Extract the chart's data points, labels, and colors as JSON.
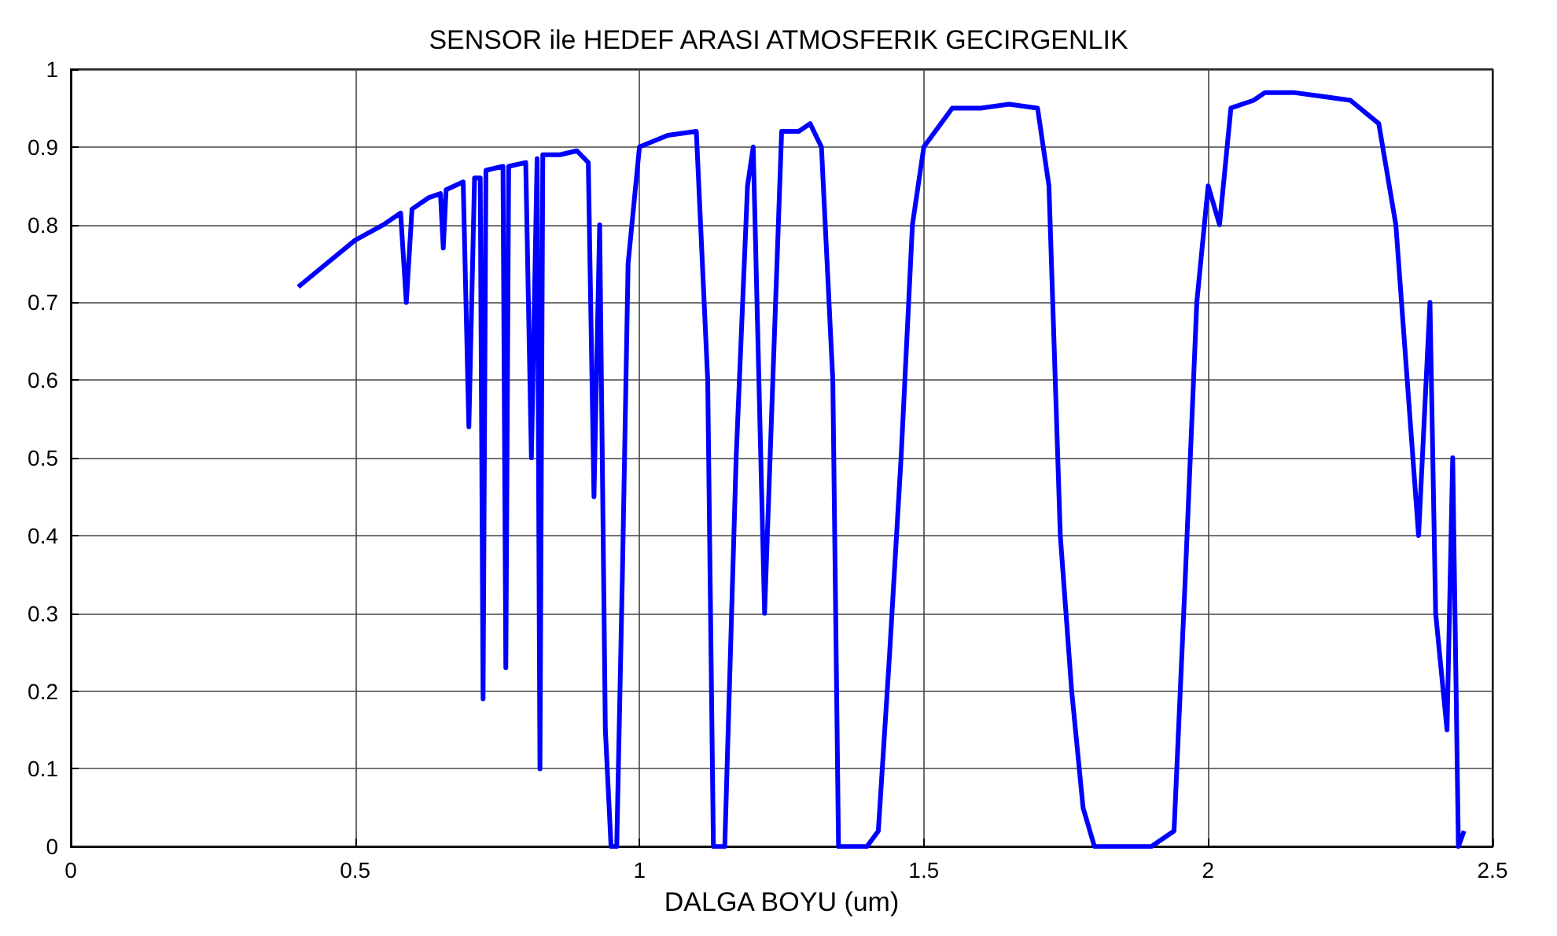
{
  "chart_data": {
    "type": "line",
    "title": "SENSOR ile HEDEF ARASI ATMOSFERIK GECIRGENLIK",
    "xlabel": "DALGA BOYU (um)",
    "color": "#0000ff",
    "grid": true,
    "marker": "none",
    "line_style": "solid",
    "xlim": [
      0,
      2.5
    ],
    "xticks": [
      0,
      0.5,
      1,
      1.5,
      2,
      2.5
    ],
    "ylim": [
      0,
      1
    ],
    "yticks": [
      0,
      0.1,
      0.2,
      0.3,
      0.4,
      0.5,
      0.6,
      0.7,
      0.8,
      0.9,
      1
    ],
    "x": [
      0.4,
      0.45,
      0.5,
      0.55,
      0.58,
      0.59,
      0.6,
      0.63,
      0.65,
      0.655,
      0.66,
      0.69,
      0.7,
      0.71,
      0.72,
      0.725,
      0.73,
      0.76,
      0.765,
      0.77,
      0.8,
      0.81,
      0.82,
      0.825,
      0.83,
      0.86,
      0.89,
      0.91,
      0.92,
      0.93,
      0.94,
      0.95,
      0.96,
      0.97,
      0.98,
      1.0,
      1.05,
      1.1,
      1.12,
      1.13,
      1.15,
      1.17,
      1.19,
      1.2,
      1.22,
      1.25,
      1.28,
      1.3,
      1.32,
      1.34,
      1.35,
      1.37,
      1.4,
      1.42,
      1.44,
      1.46,
      1.48,
      1.5,
      1.53,
      1.55,
      1.6,
      1.65,
      1.7,
      1.72,
      1.74,
      1.76,
      1.78,
      1.8,
      1.85,
      1.9,
      1.94,
      1.96,
      1.98,
      2.0,
      2.02,
      2.04,
      2.08,
      2.1,
      2.15,
      2.2,
      2.25,
      2.3,
      2.33,
      2.35,
      2.37,
      2.39,
      2.4,
      2.42,
      2.43,
      2.44,
      2.45
    ],
    "values": [
      0.72,
      0.75,
      0.78,
      0.8,
      0.815,
      0.7,
      0.82,
      0.835,
      0.84,
      0.77,
      0.845,
      0.855,
      0.54,
      0.86,
      0.86,
      0.19,
      0.87,
      0.875,
      0.23,
      0.875,
      0.88,
      0.5,
      0.885,
      0.1,
      0.89,
      0.89,
      0.895,
      0.88,
      0.45,
      0.8,
      0.15,
      0.0,
      0.0,
      0.35,
      0.75,
      0.9,
      0.915,
      0.92,
      0.6,
      0.0,
      0.0,
      0.5,
      0.85,
      0.9,
      0.3,
      0.92,
      0.92,
      0.93,
      0.9,
      0.6,
      0.0,
      0.0,
      0.0,
      0.02,
      0.25,
      0.5,
      0.8,
      0.9,
      0.93,
      0.95,
      0.95,
      0.955,
      0.95,
      0.85,
      0.4,
      0.2,
      0.05,
      0.0,
      0.0,
      0.0,
      0.02,
      0.35,
      0.7,
      0.85,
      0.8,
      0.95,
      0.96,
      0.97,
      0.97,
      0.965,
      0.96,
      0.93,
      0.8,
      0.6,
      0.4,
      0.7,
      0.3,
      0.15,
      0.5,
      0.0,
      0.02
    ]
  }
}
